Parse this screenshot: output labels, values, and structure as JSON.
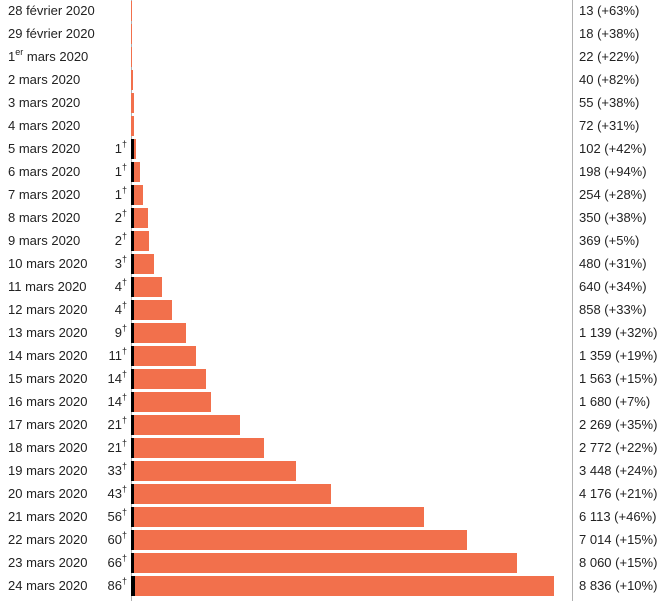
{
  "chart_data": {
    "type": "bar",
    "orientation": "horizontal",
    "stacked": true,
    "colors": {
      "cases": "#f2704c",
      "deaths": "#000000"
    },
    "categories": [
      {
        "pre": "28 février 2020",
        "sup": "",
        "post": ""
      },
      {
        "pre": "29 février 2020",
        "sup": "",
        "post": ""
      },
      {
        "pre": "1",
        "sup": "er",
        "post": " mars 2020"
      },
      {
        "pre": "2 mars 2020",
        "sup": "",
        "post": ""
      },
      {
        "pre": "3 mars 2020",
        "sup": "",
        "post": ""
      },
      {
        "pre": "4 mars 2020",
        "sup": "",
        "post": ""
      },
      {
        "pre": "5 mars 2020",
        "sup": "",
        "post": ""
      },
      {
        "pre": "6 mars 2020",
        "sup": "",
        "post": ""
      },
      {
        "pre": "7 mars 2020",
        "sup": "",
        "post": ""
      },
      {
        "pre": "8 mars 2020",
        "sup": "",
        "post": ""
      },
      {
        "pre": "9 mars 2020",
        "sup": "",
        "post": ""
      },
      {
        "pre": "10 mars 2020",
        "sup": "",
        "post": ""
      },
      {
        "pre": "11 mars 2020",
        "sup": "",
        "post": ""
      },
      {
        "pre": "12 mars 2020",
        "sup": "",
        "post": ""
      },
      {
        "pre": "13 mars 2020",
        "sup": "",
        "post": ""
      },
      {
        "pre": "14 mars 2020",
        "sup": "",
        "post": ""
      },
      {
        "pre": "15 mars 2020",
        "sup": "",
        "post": ""
      },
      {
        "pre": "16 mars 2020",
        "sup": "",
        "post": ""
      },
      {
        "pre": "17 mars 2020",
        "sup": "",
        "post": ""
      },
      {
        "pre": "18 mars 2020",
        "sup": "",
        "post": ""
      },
      {
        "pre": "19 mars 2020",
        "sup": "",
        "post": ""
      },
      {
        "pre": "20 mars 2020",
        "sup": "",
        "post": ""
      },
      {
        "pre": "21 mars 2020",
        "sup": "",
        "post": ""
      },
      {
        "pre": "22 mars 2020",
        "sup": "",
        "post": ""
      },
      {
        "pre": "23 mars 2020",
        "sup": "",
        "post": ""
      },
      {
        "pre": "24 mars 2020",
        "sup": "",
        "post": ""
      }
    ],
    "death_marker": "†",
    "series": [
      {
        "values": [
          0,
          0,
          0,
          0,
          0,
          0,
          1,
          1,
          1,
          2,
          2,
          3,
          4,
          4,
          9,
          11,
          14,
          14,
          21,
          21,
          33,
          43,
          56,
          60,
          66,
          86
        ]
      },
      {
        "values": [
          13,
          18,
          22,
          40,
          55,
          72,
          102,
          198,
          254,
          350,
          369,
          480,
          640,
          858,
          1139,
          1359,
          1563,
          1680,
          2269,
          2772,
          3448,
          4176,
          6113,
          7014,
          8060,
          8836
        ]
      }
    ],
    "count_labels": [
      "13 (+63%)",
      "18 (+38%)",
      "22 (+22%)",
      "40 (+82%)",
      "55 (+38%)",
      "72 (+31%)",
      "102 (+42%)",
      "198 (+94%)",
      "254 (+28%)",
      "350 (+38%)",
      "369 (+5%)",
      "480 (+31%)",
      "640 (+34%)",
      "858 (+33%)",
      "1 139 (+32%)",
      "1 359 (+19%)",
      "1 563 (+15%)",
      "1 680 (+7%)",
      "2 269 (+35%)",
      "2 772 (+22%)",
      "3 448 (+24%)",
      "4 176 (+21%)",
      "6 113 (+46%)",
      "7 014 (+15%)",
      "8 060 (+15%)",
      "8 836 (+10%)"
    ],
    "xlim": [
      0,
      8836
    ],
    "grid": false
  }
}
